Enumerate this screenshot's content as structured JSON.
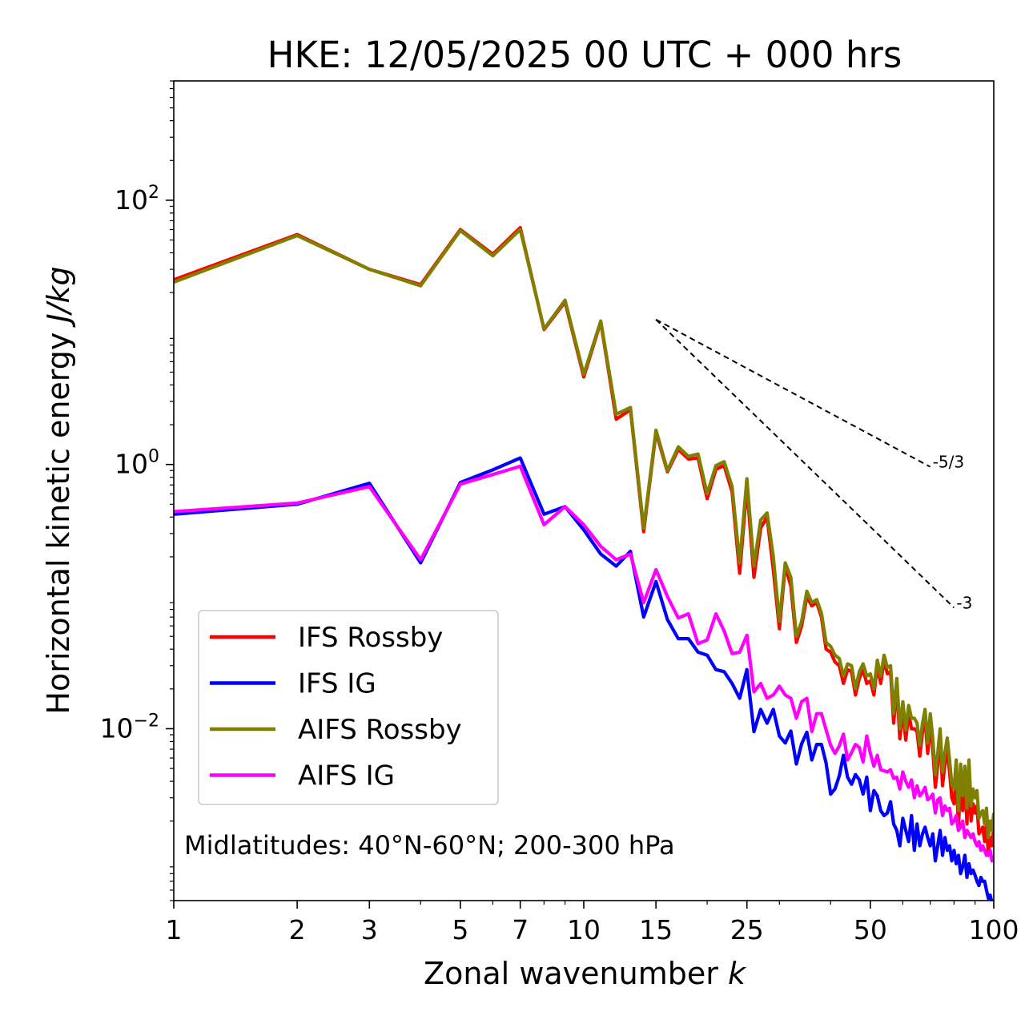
{
  "chart_data": {
    "type": "line",
    "title": "HKE: 12/05/2025 00 UTC + 000 hrs",
    "xlabel": "Zonal wavenumber",
    "xlabel_var": "k",
    "ylabel": "Horizontal kinetic energy",
    "ylabel_unit": "J/kg",
    "xscale": "log",
    "yscale": "log",
    "xlim": [
      1,
      100
    ],
    "ylim": [
      0.0005,
      800
    ],
    "x_ticks": [
      {
        "value": 1,
        "label": "1"
      },
      {
        "value": 2,
        "label": "2"
      },
      {
        "value": 3,
        "label": "3"
      },
      {
        "value": 5,
        "label": "5"
      },
      {
        "value": 7,
        "label": "7"
      },
      {
        "value": 10,
        "label": "10"
      },
      {
        "value": 15,
        "label": "15"
      },
      {
        "value": 25,
        "label": "25"
      },
      {
        "value": 50,
        "label": "50"
      },
      {
        "value": 100,
        "label": "100"
      }
    ],
    "y_ticks": [
      {
        "value": 100,
        "base": "10",
        "exp": "2"
      },
      {
        "value": 1,
        "base": "10",
        "exp": "0"
      },
      {
        "value": 0.01,
        "base": "10",
        "exp": "−2"
      }
    ],
    "annotation": "Midlatitudes: 40°N-60°N; 200-300 hPa",
    "legend_position": "lower-left",
    "reference_slopes": [
      {
        "label": "-5/3",
        "exponent": -1.6667,
        "x_start": 15,
        "x_end": 70,
        "y_start": 12.5
      },
      {
        "label": "-3",
        "exponent": -3,
        "x_start": 15,
        "x_end": 80,
        "y_start": 12.5
      }
    ],
    "series": [
      {
        "name": "IFS Rossby",
        "color": "#ff0000",
        "x": [
          1,
          2,
          3,
          4,
          5,
          6,
          7,
          8,
          9,
          10,
          11,
          12,
          13,
          14,
          15,
          16,
          17,
          18,
          19,
          20,
          21,
          22,
          23,
          24,
          25,
          26,
          27,
          28,
          29,
          30,
          31,
          32,
          33,
          34,
          35,
          36,
          37,
          38,
          39,
          40,
          41,
          42,
          43,
          44,
          45,
          46,
          47,
          48,
          49,
          50,
          51,
          52,
          53,
          54,
          55,
          56,
          57,
          58,
          59,
          60,
          61,
          62,
          63,
          64,
          65,
          66,
          67,
          68,
          69,
          70,
          71,
          72,
          73,
          74,
          75,
          76,
          77,
          78,
          79,
          80,
          81,
          82,
          83,
          84,
          85,
          86,
          87,
          88,
          89,
          90,
          91,
          92,
          93,
          94,
          95,
          96,
          97,
          98,
          99,
          100
        ],
        "y": [
          25,
          55,
          30,
          23,
          60,
          39,
          62,
          10.5,
          17,
          4.6,
          12,
          2.2,
          2.6,
          0.31,
          1.75,
          0.88,
          1.3,
          1.1,
          1.12,
          0.55,
          0.92,
          0.98,
          0.62,
          0.15,
          0.68,
          0.14,
          0.33,
          0.4,
          0.16,
          0.057,
          0.17,
          0.12,
          0.045,
          0.06,
          0.1,
          0.085,
          0.09,
          0.07,
          0.04,
          0.038,
          0.032,
          0.03,
          0.022,
          0.028,
          0.027,
          0.018,
          0.024,
          0.028,
          0.022,
          0.023,
          0.018,
          0.03,
          0.022,
          0.033,
          0.026,
          0.027,
          0.011,
          0.021,
          0.0084,
          0.014,
          0.0082,
          0.013,
          0.01,
          0.01,
          0.0095,
          0.0062,
          0.0094,
          0.012,
          0.0065,
          0.011,
          0.007,
          0.0036,
          0.0053,
          0.0086,
          0.0037,
          0.0054,
          0.0068,
          0.0047,
          0.003,
          0.0027,
          0.0046,
          0.0018,
          0.0042,
          0.0024,
          0.0042,
          0.0019,
          0.0047,
          0.002,
          0.0027,
          0.0023,
          0.0026,
          0.0016,
          0.0017,
          0.0018,
          0.0014,
          0.0019,
          0.0011,
          0.0015,
          0.0013,
          0.0018
        ]
      },
      {
        "name": "IFS IG",
        "color": "#0000ff",
        "x": [
          1,
          2,
          3,
          4,
          5,
          6,
          7,
          8,
          9,
          10,
          11,
          12,
          13,
          14,
          15,
          16,
          17,
          18,
          19,
          20,
          21,
          22,
          23,
          24,
          25,
          26,
          27,
          28,
          29,
          30,
          31,
          32,
          33,
          34,
          35,
          36,
          37,
          38,
          39,
          40,
          41,
          42,
          43,
          44,
          45,
          46,
          47,
          48,
          49,
          50,
          51,
          52,
          53,
          54,
          55,
          56,
          57,
          58,
          59,
          60,
          61,
          62,
          63,
          64,
          65,
          66,
          67,
          68,
          69,
          70,
          71,
          72,
          73,
          74,
          75,
          76,
          77,
          78,
          79,
          80,
          81,
          82,
          83,
          84,
          85,
          86,
          87,
          88,
          89,
          90,
          91,
          92,
          93,
          94,
          95,
          96,
          97,
          98,
          99,
          100
        ],
        "y": [
          0.42,
          0.5,
          0.72,
          0.18,
          0.73,
          0.91,
          1.12,
          0.42,
          0.48,
          0.32,
          0.21,
          0.17,
          0.22,
          0.07,
          0.13,
          0.067,
          0.048,
          0.048,
          0.038,
          0.036,
          0.028,
          0.027,
          0.022,
          0.017,
          0.028,
          0.0095,
          0.014,
          0.011,
          0.014,
          0.0088,
          0.0078,
          0.0096,
          0.0054,
          0.0077,
          0.0094,
          0.0058,
          0.0076,
          0.0076,
          0.0055,
          0.0032,
          0.0035,
          0.0044,
          0.0063,
          0.0043,
          0.0038,
          0.0045,
          0.0041,
          0.0032,
          0.0043,
          0.0024,
          0.0034,
          0.0031,
          0.0024,
          0.0022,
          0.0023,
          0.0028,
          0.0019,
          0.0017,
          0.0013,
          0.0021,
          0.0017,
          0.0014,
          0.0022,
          0.0012,
          0.0019,
          0.0013,
          0.0016,
          0.0018,
          0.0015,
          0.0013,
          0.0016,
          0.001,
          0.0013,
          0.0017,
          0.0011,
          0.0015,
          0.0012,
          0.0013,
          0.001,
          0.0012,
          0.00095,
          0.0011,
          0.0008,
          0.0009,
          0.0011,
          0.00075,
          0.00095,
          0.0008,
          0.00085,
          0.00078,
          0.0007,
          0.00065,
          0.00075,
          0.0007,
          0.0007,
          0.0006,
          0.00052,
          0.00055,
          0.00048,
          0.00044
        ]
      },
      {
        "name": "AIFS Rossby",
        "color": "#808000",
        "x": [
          1,
          2,
          3,
          4,
          5,
          6,
          7,
          8,
          9,
          10,
          11,
          12,
          13,
          14,
          15,
          16,
          17,
          18,
          19,
          20,
          21,
          22,
          23,
          24,
          25,
          26,
          27,
          28,
          29,
          30,
          31,
          32,
          33,
          34,
          35,
          36,
          37,
          38,
          39,
          40,
          41,
          42,
          43,
          44,
          45,
          46,
          47,
          48,
          49,
          50,
          51,
          52,
          53,
          54,
          55,
          56,
          57,
          58,
          59,
          60,
          61,
          62,
          63,
          64,
          65,
          66,
          67,
          68,
          69,
          70,
          71,
          72,
          73,
          74,
          75,
          76,
          77,
          78,
          79,
          80,
          81,
          82,
          83,
          84,
          85,
          86,
          87,
          88,
          89,
          90,
          91,
          92,
          93,
          94,
          95,
          96,
          97,
          98,
          99,
          100
        ],
        "y": [
          24,
          54,
          30,
          22.5,
          59,
          38,
          60,
          10.6,
          17.5,
          4.8,
          12.2,
          2.4,
          2.7,
          0.33,
          1.82,
          0.9,
          1.36,
          1.15,
          1.2,
          0.6,
          0.98,
          1.05,
          0.68,
          0.18,
          0.78,
          0.17,
          0.38,
          0.43,
          0.2,
          0.065,
          0.18,
          0.14,
          0.05,
          0.065,
          0.11,
          0.09,
          0.095,
          0.075,
          0.045,
          0.042,
          0.036,
          0.034,
          0.025,
          0.031,
          0.03,
          0.02,
          0.027,
          0.031,
          0.025,
          0.026,
          0.02,
          0.033,
          0.025,
          0.036,
          0.029,
          0.03,
          0.013,
          0.024,
          0.01,
          0.016,
          0.0098,
          0.015,
          0.012,
          0.012,
          0.011,
          0.0075,
          0.011,
          0.014,
          0.0078,
          0.013,
          0.0085,
          0.0045,
          0.0065,
          0.01,
          0.0047,
          0.0066,
          0.0085,
          0.0058,
          0.0038,
          0.0035,
          0.0058,
          0.0024,
          0.0054,
          0.0031,
          0.0052,
          0.0025,
          0.0058,
          0.0026,
          0.0035,
          0.003,
          0.0034,
          0.0021,
          0.0023,
          0.0024,
          0.0019,
          0.0025,
          0.0015,
          0.002,
          0.0017,
          0.0023
        ]
      },
      {
        "name": "AIFS IG",
        "color": "#ff00ff",
        "x": [
          1,
          2,
          3,
          4,
          5,
          6,
          7,
          8,
          9,
          10,
          11,
          12,
          13,
          14,
          15,
          16,
          17,
          18,
          19,
          20,
          21,
          22,
          23,
          24,
          25,
          26,
          27,
          28,
          29,
          30,
          31,
          32,
          33,
          34,
          35,
          36,
          37,
          38,
          39,
          40,
          41,
          42,
          43,
          44,
          45,
          46,
          47,
          48,
          49,
          50,
          51,
          52,
          53,
          54,
          55,
          56,
          57,
          58,
          59,
          60,
          61,
          62,
          63,
          64,
          65,
          66,
          67,
          68,
          69,
          70,
          71,
          72,
          73,
          74,
          75,
          76,
          77,
          78,
          79,
          80,
          81,
          82,
          83,
          84,
          85,
          86,
          87,
          88,
          89,
          90,
          91,
          92,
          93,
          94,
          95,
          96,
          97,
          98,
          99,
          100
        ],
        "y": [
          0.44,
          0.51,
          0.68,
          0.19,
          0.71,
          0.84,
          0.97,
          0.35,
          0.48,
          0.35,
          0.24,
          0.19,
          0.21,
          0.09,
          0.16,
          0.1,
          0.069,
          0.074,
          0.044,
          0.047,
          0.074,
          0.055,
          0.037,
          0.038,
          0.051,
          0.019,
          0.022,
          0.017,
          0.018,
          0.021,
          0.018,
          0.017,
          0.012,
          0.016,
          0.017,
          0.0095,
          0.013,
          0.013,
          0.0098,
          0.0075,
          0.0065,
          0.0074,
          0.0091,
          0.0058,
          0.0066,
          0.0076,
          0.0072,
          0.0056,
          0.0088,
          0.0065,
          0.0052,
          0.0063,
          0.0049,
          0.0048,
          0.0047,
          0.0049,
          0.0042,
          0.0043,
          0.0035,
          0.0047,
          0.004,
          0.0036,
          0.0041,
          0.003,
          0.0037,
          0.0031,
          0.0033,
          0.0036,
          0.0029,
          0.003,
          0.0032,
          0.0023,
          0.0029,
          0.003,
          0.0022,
          0.0026,
          0.0024,
          0.0025,
          0.0019,
          0.002,
          0.0022,
          0.0017,
          0.0018,
          0.002,
          0.0015,
          0.0017,
          0.0016,
          0.0015,
          0.0016,
          0.0014,
          0.0013,
          0.0014,
          0.0012,
          0.0013,
          0.0012,
          0.0011,
          0.0011,
          0.0012,
          0.001,
          0.0011
        ]
      }
    ]
  }
}
